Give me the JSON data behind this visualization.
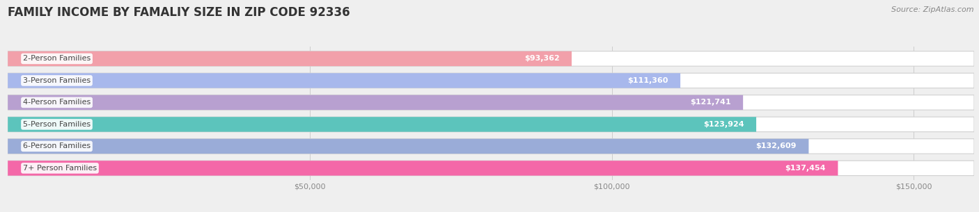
{
  "title": "FAMILY INCOME BY FAMALIY SIZE IN ZIP CODE 92336",
  "source": "Source: ZipAtlas.com",
  "categories": [
    "2-Person Families",
    "3-Person Families",
    "4-Person Families",
    "5-Person Families",
    "6-Person Families",
    "7+ Person Families"
  ],
  "values": [
    93362,
    111360,
    121741,
    123924,
    132609,
    137454
  ],
  "labels": [
    "$93,362",
    "$111,360",
    "$121,741",
    "$123,924",
    "$132,609",
    "$137,454"
  ],
  "bar_colors": [
    "#F2A0AA",
    "#A8B8EC",
    "#B8A0D0",
    "#5CC4BC",
    "#9AACD8",
    "#F468A8"
  ],
  "background_color": "#efefef",
  "xlim": [
    0,
    160000
  ],
  "xticks": [
    50000,
    100000,
    150000
  ],
  "xticklabels": [
    "$50,000",
    "$100,000",
    "$150,000"
  ],
  "title_fontsize": 12,
  "source_fontsize": 8,
  "label_fontsize": 8,
  "bar_height": 0.68,
  "bar_label_color": "#ffffff",
  "category_label_color": "#444444"
}
